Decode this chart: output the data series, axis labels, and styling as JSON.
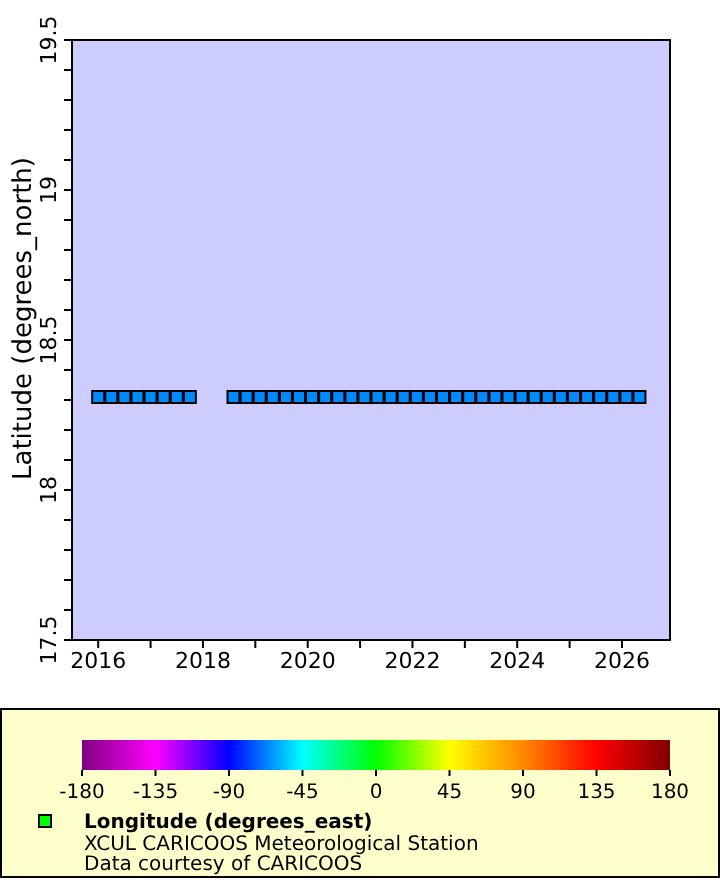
{
  "chart_data": {
    "type": "scatter",
    "ylabel": "Latitude (degrees_north)",
    "clabel": "Longitude (degrees_east)",
    "annotations": [
      "XCUL CARICOOS Meteorological Station",
      "Data courtesy of CARICOOS"
    ],
    "marker": "square",
    "xlim": [
      "2015-07",
      "2026-12"
    ],
    "xticks": [
      {
        "value": "2016",
        "label": "2016"
      },
      {
        "value": "2017",
        "label": null
      },
      {
        "value": "2018",
        "label": "2018"
      },
      {
        "value": "2019",
        "label": null
      },
      {
        "value": "2020",
        "label": "2020"
      },
      {
        "value": "2021",
        "label": null
      },
      {
        "value": "2022",
        "label": "2022"
      },
      {
        "value": "2023",
        "label": null
      },
      {
        "value": "2024",
        "label": "2024"
      },
      {
        "value": "2025",
        "label": null
      },
      {
        "value": "2026",
        "label": "2026"
      }
    ],
    "ylim": [
      17.5,
      19.5
    ],
    "yticks": [
      17.5,
      {
        "value": 17.6,
        "label": null
      },
      {
        "value": 17.7,
        "label": null
      },
      {
        "value": 17.8,
        "label": null
      },
      {
        "value": 17.9,
        "label": null
      },
      18,
      {
        "value": 18.1,
        "label": null
      },
      {
        "value": 18.2,
        "label": null
      },
      {
        "value": 18.3,
        "label": null
      },
      {
        "value": 18.4,
        "label": null
      },
      18.5,
      {
        "value": 18.6,
        "label": null
      },
      {
        "value": 18.7,
        "label": null
      },
      {
        "value": 18.8,
        "label": null
      },
      {
        "value": 18.9,
        "label": null
      },
      19,
      {
        "value": 19.1,
        "label": null
      },
      {
        "value": 19.2,
        "label": null
      },
      {
        "value": 19.3,
        "label": null
      },
      {
        "value": 19.4,
        "label": null
      },
      19.5
    ],
    "clim": [
      -180,
      180
    ],
    "cticks": [
      -180,
      -135,
      -90,
      -45,
      0,
      45,
      90,
      135,
      180
    ],
    "series": [
      {
        "color": "#000000",
        "x": [
          "2016-01",
          "2016-04",
          "2016-07",
          "2016-10",
          "2017-01",
          "2017-04",
          "2017-07",
          "2017-10",
          "2018-08",
          "2018-11",
          "2019-02",
          "2019-05",
          "2019-08",
          "2019-11",
          "2020-02",
          "2020-05",
          "2020-08",
          "2020-11",
          "2021-02",
          "2021-05",
          "2021-08",
          "2021-11",
          "2022-02",
          "2022-05",
          "2022-08",
          "2022-11",
          "2023-02",
          "2023-05",
          "2023-08",
          "2023-11",
          "2024-02",
          "2024-05",
          "2024-08",
          "2024-11",
          "2025-02",
          "2025-05",
          "2025-08",
          "2025-11",
          "2026-02",
          "2026-05"
        ],
        "values": [
          18.31,
          18.31,
          18.31,
          18.31,
          18.31,
          18.31,
          18.31,
          18.31,
          18.31,
          18.31,
          18.31,
          18.31,
          18.31,
          18.31,
          18.31,
          18.31,
          18.31,
          18.31,
          18.31,
          18.31,
          18.31,
          18.31,
          18.31,
          18.31,
          18.31,
          18.31,
          18.31,
          18.31,
          18.31,
          18.31,
          18.31,
          18.31,
          18.31,
          18.31,
          18.31,
          18.31,
          18.31,
          18.31,
          18.31,
          18.31
        ],
        "cvalues": [
          -65.6,
          -65.6,
          -65.6,
          -65.6,
          -65.6,
          -65.6,
          -65.6,
          -65.6,
          -65.6,
          -65.6,
          -65.6,
          -65.6,
          -65.6,
          -65.6,
          -65.6,
          -65.6,
          -65.6,
          -65.6,
          -65.6,
          -65.6,
          -65.6,
          -65.6,
          -65.6,
          -65.6,
          -65.6,
          -65.6,
          -65.6,
          -65.6,
          -65.6,
          -65.6,
          -65.6,
          -65.6,
          -65.6,
          -65.6,
          -65.6,
          -65.6,
          -65.6,
          -65.6,
          -65.6,
          -65.6
        ]
      }
    ]
  }
}
